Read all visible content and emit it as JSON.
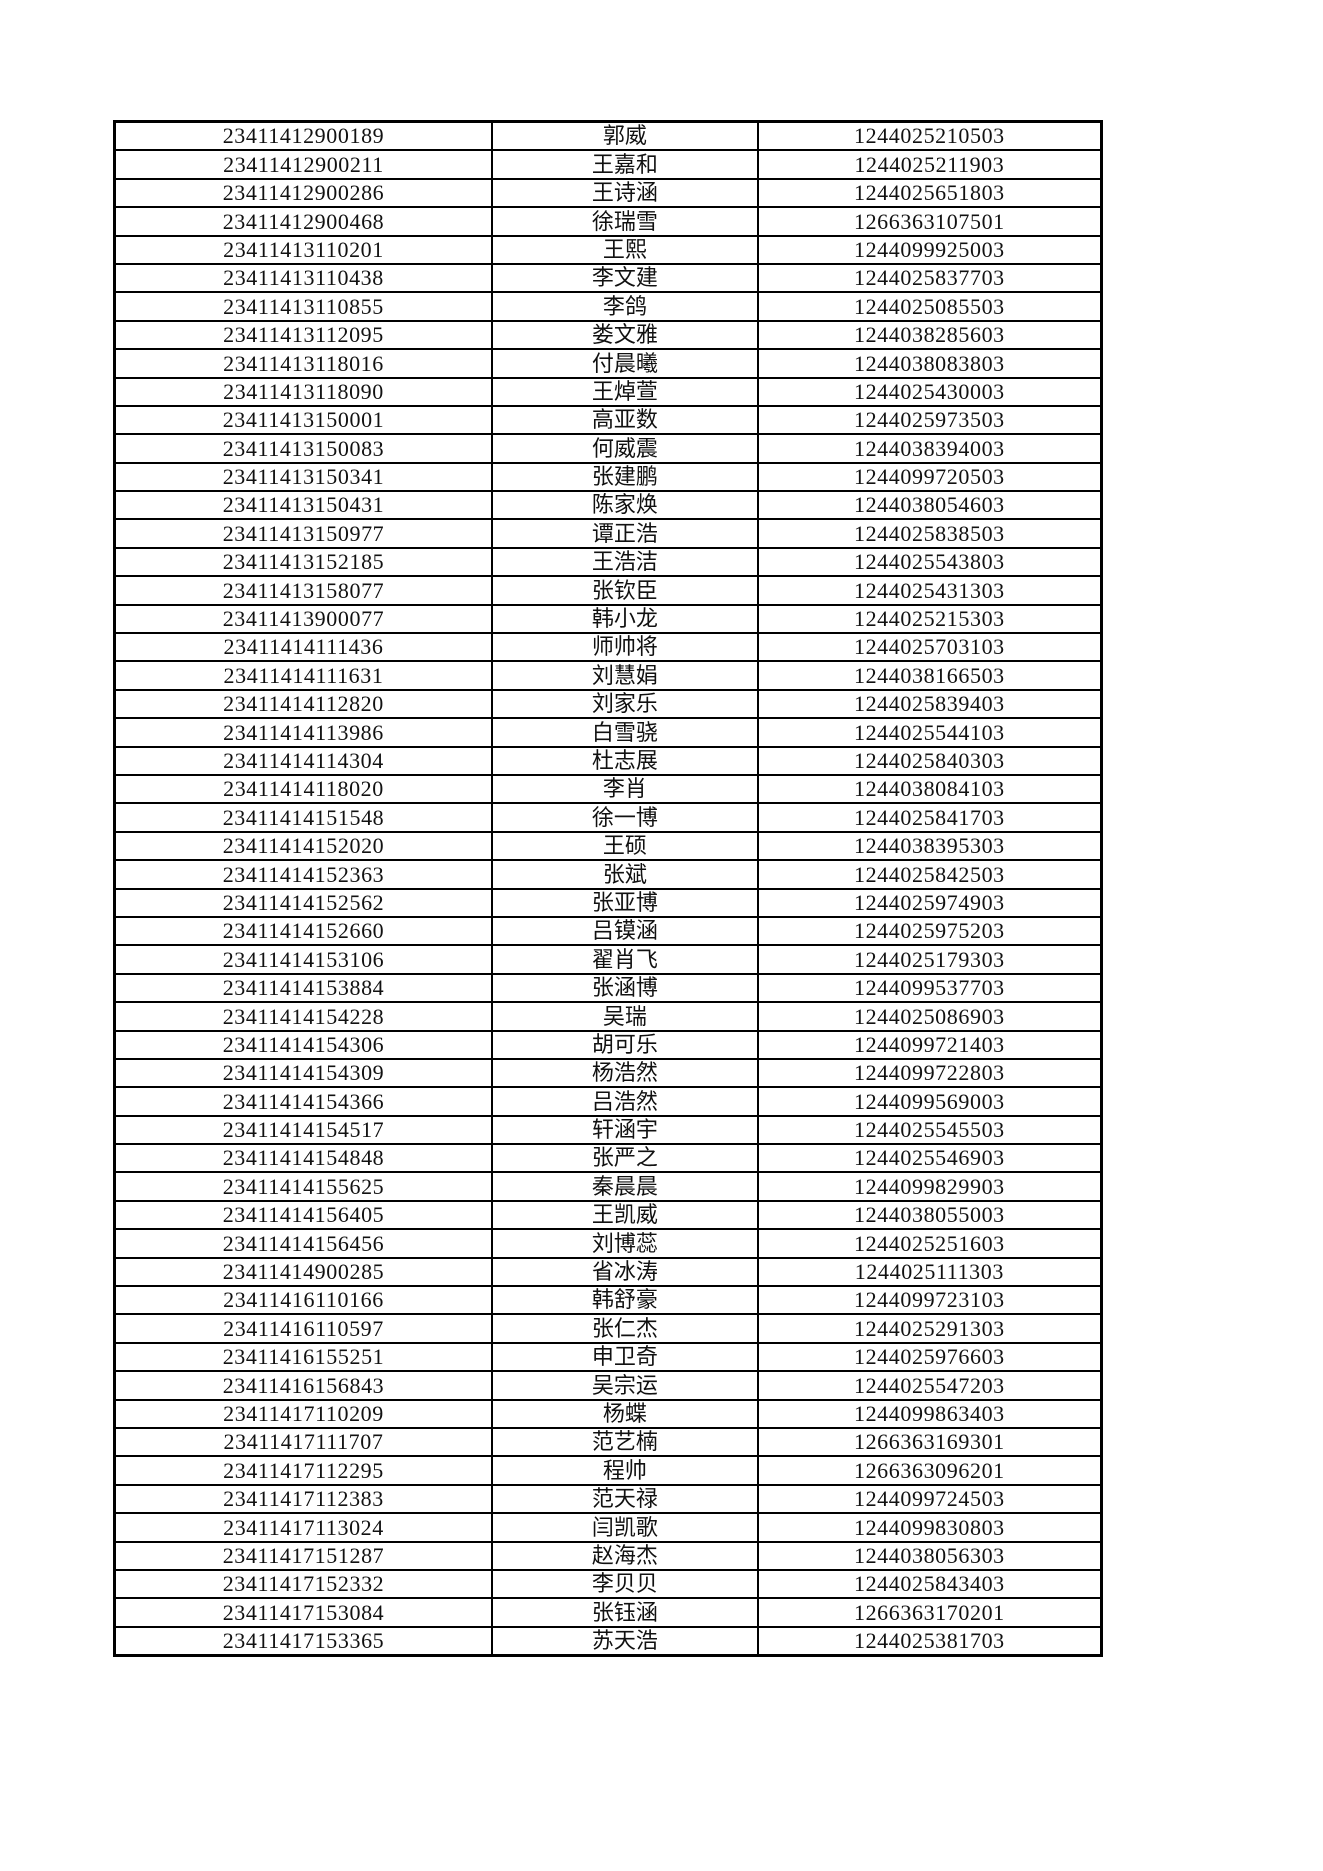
{
  "table": {
    "rows": [
      [
        "23411412900189",
        "郭威",
        "1244025210503"
      ],
      [
        "23411412900211",
        "王嘉和",
        "1244025211903"
      ],
      [
        "23411412900286",
        "王诗涵",
        "1244025651803"
      ],
      [
        "23411412900468",
        "徐瑞雪",
        "1266363107501"
      ],
      [
        "23411413110201",
        "王熙",
        "1244099925003"
      ],
      [
        "23411413110438",
        "李文建",
        "1244025837703"
      ],
      [
        "23411413110855",
        "李鸽",
        "1244025085503"
      ],
      [
        "23411413112095",
        "娄文雅",
        "1244038285603"
      ],
      [
        "23411413118016",
        "付晨曦",
        "1244038083803"
      ],
      [
        "23411413118090",
        "王焯萱",
        "1244025430003"
      ],
      [
        "23411413150001",
        "高亚数",
        "1244025973503"
      ],
      [
        "23411413150083",
        "何威震",
        "1244038394003"
      ],
      [
        "23411413150341",
        "张建鹏",
        "1244099720503"
      ],
      [
        "23411413150431",
        "陈家焕",
        "1244038054603"
      ],
      [
        "23411413150977",
        "谭正浩",
        "1244025838503"
      ],
      [
        "23411413152185",
        "王浩洁",
        "1244025543803"
      ],
      [
        "23411413158077",
        "张钦臣",
        "1244025431303"
      ],
      [
        "23411413900077",
        "韩小龙",
        "1244025215303"
      ],
      [
        "23411414111436",
        "师帅将",
        "1244025703103"
      ],
      [
        "23411414111631",
        "刘慧娟",
        "1244038166503"
      ],
      [
        "23411414112820",
        "刘家乐",
        "1244025839403"
      ],
      [
        "23411414113986",
        "白雪骁",
        "1244025544103"
      ],
      [
        "23411414114304",
        "杜志展",
        "1244025840303"
      ],
      [
        "23411414118020",
        "李肖",
        "1244038084103"
      ],
      [
        "23411414151548",
        "徐一博",
        "1244025841703"
      ],
      [
        "23411414152020",
        "王硕",
        "1244038395303"
      ],
      [
        "23411414152363",
        "张斌",
        "1244025842503"
      ],
      [
        "23411414152562",
        "张亚博",
        "1244025974903"
      ],
      [
        "23411414152660",
        "吕镆涵",
        "1244025975203"
      ],
      [
        "23411414153106",
        "翟肖飞",
        "1244025179303"
      ],
      [
        "23411414153884",
        "张涵博",
        "1244099537703"
      ],
      [
        "23411414154228",
        "吴瑞",
        "1244025086903"
      ],
      [
        "23411414154306",
        "胡可乐",
        "1244099721403"
      ],
      [
        "23411414154309",
        "杨浩然",
        "1244099722803"
      ],
      [
        "23411414154366",
        "吕浩然",
        "1244099569003"
      ],
      [
        "23411414154517",
        "轩涵宇",
        "1244025545503"
      ],
      [
        "23411414154848",
        "张严之",
        "1244025546903"
      ],
      [
        "23411414155625",
        "秦晨晨",
        "1244099829903"
      ],
      [
        "23411414156405",
        "王凯威",
        "1244038055003"
      ],
      [
        "23411414156456",
        "刘博蕊",
        "1244025251603"
      ],
      [
        "23411414900285",
        "省冰涛",
        "1244025111303"
      ],
      [
        "23411416110166",
        "韩舒豪",
        "1244099723103"
      ],
      [
        "23411416110597",
        "张仁杰",
        "1244025291303"
      ],
      [
        "23411416155251",
        "申卫奇",
        "1244025976603"
      ],
      [
        "23411416156843",
        "吴宗运",
        "1244025547203"
      ],
      [
        "23411417110209",
        "杨蝶",
        "1244099863403"
      ],
      [
        "23411417111707",
        "范艺楠",
        "1266363169301"
      ],
      [
        "23411417112295",
        "程帅",
        "1266363096201"
      ],
      [
        "23411417112383",
        "范天禄",
        "1244099724503"
      ],
      [
        "23411417113024",
        "闫凯歌",
        "1244099830803"
      ],
      [
        "23411417151287",
        "赵海杰",
        "1244038056303"
      ],
      [
        "23411417152332",
        "李贝贝",
        "1244025843403"
      ],
      [
        "23411417153084",
        "张钰涵",
        "1266363170201"
      ],
      [
        "23411417153365",
        "苏天浩",
        "1244025381703"
      ]
    ]
  }
}
